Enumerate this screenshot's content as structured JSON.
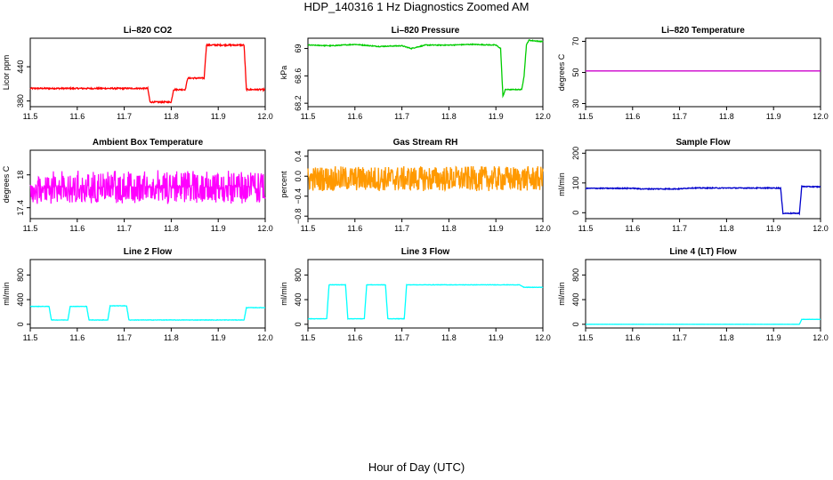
{
  "main_title": "HDP_140316  1 Hz Diagnostics Zoomed AM",
  "xlabel": "Hour of Day (UTC)",
  "chart_data": [
    {
      "type": "line",
      "title": "Li–820 CO2",
      "ylabel": "Licor ppm",
      "color": "#ff0000",
      "xlim": [
        11.5,
        12.0
      ],
      "ylim": [
        370,
        490
      ],
      "yticks": [
        380,
        440
      ],
      "xticks": [
        11.5,
        11.6,
        11.7,
        11.8,
        11.9,
        12.0
      ],
      "noise": 1.2,
      "x": [
        11.5,
        11.7,
        11.75,
        11.755,
        11.8,
        11.805,
        11.83,
        11.835,
        11.87,
        11.875,
        11.955,
        11.96,
        12.0
      ],
      "y": [
        402,
        402,
        402,
        378,
        378,
        400,
        400,
        420,
        420,
        478,
        478,
        400,
        400
      ]
    },
    {
      "type": "line",
      "title": "Li–820 Pressure",
      "ylabel": "kPa",
      "color": "#00cc00",
      "xlim": [
        11.5,
        12.0
      ],
      "ylim": [
        68.15,
        69.15
      ],
      "yticks": [
        68.2,
        68.6,
        69.0
      ],
      "xticks": [
        11.5,
        11.6,
        11.7,
        11.8,
        11.9,
        12.0
      ],
      "noise": 0.006,
      "x": [
        11.5,
        11.55,
        11.6,
        11.65,
        11.7,
        11.72,
        11.75,
        11.8,
        11.85,
        11.9,
        11.91,
        11.915,
        11.92,
        11.955,
        11.96,
        11.965,
        11.97,
        12.0
      ],
      "y": [
        69.05,
        69.04,
        69.06,
        69.03,
        69.04,
        69.0,
        69.05,
        69.05,
        69.06,
        69.05,
        69.0,
        68.3,
        68.4,
        68.4,
        68.6,
        69.05,
        69.12,
        69.1
      ]
    },
    {
      "type": "line",
      "title": "Li–820 Temperature",
      "ylabel": "degrees C",
      "color": "#cc00cc",
      "xlim": [
        11.5,
        12.0
      ],
      "ylim": [
        28,
        72
      ],
      "yticks": [
        30,
        50,
        70
      ],
      "xticks": [
        11.5,
        11.6,
        11.7,
        11.8,
        11.9,
        12.0
      ],
      "noise": 0,
      "x": [
        11.5,
        12.0
      ],
      "y": [
        51,
        51
      ]
    },
    {
      "type": "line",
      "title": "Ambient Box Temperature",
      "ylabel": "degrees C",
      "color": "#ff00ff",
      "xlim": [
        11.5,
        12.0
      ],
      "ylim": [
        17.2,
        18.45
      ],
      "yticks": [
        17.4,
        18.0
      ],
      "xticks": [
        11.5,
        11.6,
        11.7,
        11.8,
        11.9,
        12.0
      ],
      "noise": 0.2,
      "noise_type": "step",
      "x": [
        11.5,
        12.0
      ],
      "y": [
        17.78,
        17.78
      ]
    },
    {
      "type": "line",
      "title": "Gas Stream RH",
      "ylabel": "percent",
      "color": "#ff9900",
      "xlim": [
        11.5,
        12.0
      ],
      "ylim": [
        -0.85,
        0.52
      ],
      "yticks": [
        -0.8,
        -0.4,
        0.0,
        0.4
      ],
      "ytick_labels": [
        "−0.8",
        "−0.4",
        "0.0",
        "0.4"
      ],
      "xticks": [
        11.5,
        11.6,
        11.7,
        11.8,
        11.9,
        12.0
      ],
      "noise": 0.25,
      "x": [
        11.5,
        12.0
      ],
      "y": [
        -0.05,
        -0.05
      ]
    },
    {
      "type": "line",
      "title": "Sample Flow",
      "ylabel": "ml/min",
      "color": "#0000cc",
      "xlim": [
        11.5,
        12.0
      ],
      "ylim": [
        -20,
        210
      ],
      "yticks": [
        0,
        100,
        200
      ],
      "xticks": [
        11.5,
        11.6,
        11.7,
        11.8,
        11.9,
        12.0
      ],
      "noise": 1.5,
      "x": [
        11.5,
        11.6,
        11.62,
        11.7,
        11.72,
        11.8,
        11.9,
        11.915,
        11.92,
        11.955,
        11.96,
        12.0
      ],
      "y": [
        82,
        82,
        80,
        80,
        83,
        83,
        83,
        83,
        -2,
        -2,
        88,
        87
      ]
    },
    {
      "type": "line",
      "title": "Line 2 Flow",
      "ylabel": "ml/min",
      "color": "#00ffff",
      "xlim": [
        11.5,
        12.0
      ],
      "ylim": [
        -60,
        1050
      ],
      "yticks": [
        0,
        400,
        800
      ],
      "xticks": [
        11.5,
        11.6,
        11.7,
        11.8,
        11.9,
        12.0
      ],
      "noise": 3,
      "x": [
        11.5,
        11.54,
        11.545,
        11.58,
        11.585,
        11.62,
        11.625,
        11.665,
        11.67,
        11.705,
        11.71,
        11.955,
        11.96,
        12.0
      ],
      "y": [
        290,
        290,
        70,
        70,
        290,
        290,
        70,
        70,
        300,
        300,
        70,
        70,
        270,
        270
      ]
    },
    {
      "type": "line",
      "title": "Line 3 Flow",
      "ylabel": "ml/min",
      "color": "#00ffff",
      "xlim": [
        11.5,
        12.0
      ],
      "ylim": [
        -60,
        1050
      ],
      "yticks": [
        0,
        400,
        800
      ],
      "xticks": [
        11.5,
        11.6,
        11.7,
        11.8,
        11.9,
        12.0
      ],
      "noise": 3,
      "x": [
        11.5,
        11.54,
        11.545,
        11.58,
        11.585,
        11.62,
        11.625,
        11.665,
        11.67,
        11.705,
        11.71,
        11.95,
        11.96,
        12.0
      ],
      "y": [
        90,
        90,
        640,
        640,
        90,
        90,
        640,
        640,
        90,
        90,
        640,
        640,
        600,
        600
      ]
    },
    {
      "type": "line",
      "title": "Line 4 (LT) Flow",
      "ylabel": "ml/min",
      "color": "#00ffff",
      "xlim": [
        11.5,
        12.0
      ],
      "ylim": [
        -60,
        1050
      ],
      "yticks": [
        0,
        400,
        800
      ],
      "xticks": [
        11.5,
        11.6,
        11.7,
        11.8,
        11.9,
        12.0
      ],
      "noise": 1,
      "x": [
        11.5,
        11.955,
        11.96,
        12.0
      ],
      "y": [
        0,
        0,
        80,
        80
      ]
    }
  ]
}
